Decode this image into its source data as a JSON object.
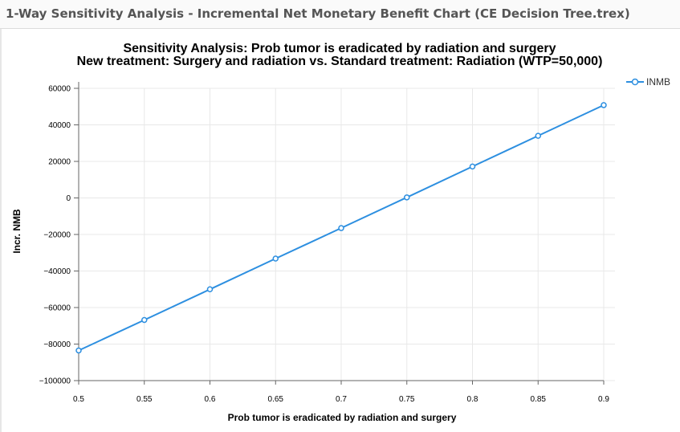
{
  "window": {
    "title": "1-Way Sensitivity Analysis - Incremental Net Monetary Benefit Chart (CE Decision Tree.trex)"
  },
  "colors": {
    "series": "#2d8fe0",
    "grid": "#e8e8e8",
    "axis": "#666666"
  },
  "chart_data": {
    "type": "line",
    "title": "Sensitivity Analysis: Prob tumor is eradicated by radiation and surgery",
    "subtitle": "New treatment: Surgery and radiation vs. Standard treatment: Radiation (WTP=50,000)",
    "xlabel": "Prob tumor is eradicated by radiation and surgery",
    "ylabel": "Incr. NMB",
    "xlim": [
      0.5,
      0.9
    ],
    "ylim": [
      -100000,
      60000
    ],
    "x_ticks": [
      "0.5",
      "0.55",
      "0.6",
      "0.65",
      "0.7",
      "0.75",
      "0.8",
      "0.85",
      "0.9"
    ],
    "y_ticks": [
      "60000",
      "40000",
      "20000",
      "0",
      "−20000",
      "−40000",
      "−60000",
      "−80000",
      "−100000"
    ],
    "grid": true,
    "legend_position": "top-right",
    "series": [
      {
        "name": "INMB",
        "x": [
          0.5,
          0.55,
          0.6,
          0.65,
          0.7,
          0.75,
          0.8,
          0.85,
          0.9
        ],
        "values": [
          -83500,
          -66800,
          -50000,
          -33200,
          -16500,
          300,
          17200,
          34000,
          50800
        ]
      }
    ]
  }
}
